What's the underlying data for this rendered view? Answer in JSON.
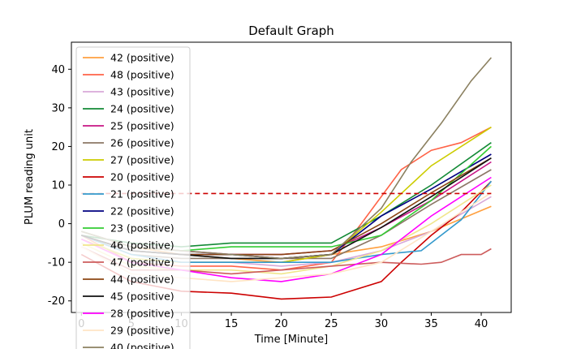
{
  "chart_data": {
    "type": "line",
    "title": "Default Graph",
    "xlabel": "Time [Minute]",
    "ylabel": "PLUM reading unit",
    "xlim": [
      -1,
      43
    ],
    "ylim": [
      -23,
      47
    ],
    "xticks": [
      0,
      5,
      10,
      15,
      20,
      25,
      30,
      35,
      40
    ],
    "yticks": [
      -20,
      -10,
      0,
      10,
      20,
      30,
      40
    ],
    "legend_position": "upper-left",
    "threshold": {
      "y": 7.8,
      "x_start": 0,
      "x_end": 41,
      "color": "#cc0000",
      "style": "dashed"
    },
    "series": [
      {
        "name": "42 (positive)",
        "color": "#ffa040",
        "points": [
          [
            0,
            -2
          ],
          [
            5,
            -6
          ],
          [
            10,
            -8
          ],
          [
            15,
            -9
          ],
          [
            20,
            -10
          ],
          [
            25,
            -8
          ],
          [
            30,
            -6
          ],
          [
            35,
            -2
          ],
          [
            41,
            4.5
          ]
        ]
      },
      {
        "name": "48 (positive)",
        "color": "#ff6347",
        "points": [
          [
            0,
            -3
          ],
          [
            5,
            -10
          ],
          [
            10,
            -11
          ],
          [
            15,
            -11
          ],
          [
            20,
            -12
          ],
          [
            25,
            -10
          ],
          [
            28,
            0
          ],
          [
            32,
            14
          ],
          [
            35,
            19
          ],
          [
            38,
            21
          ],
          [
            41,
            25
          ]
        ]
      },
      {
        "name": "43 (positive)",
        "color": "#d8a8d8",
        "points": [
          [
            0,
            -4
          ],
          [
            5,
            -9
          ],
          [
            10,
            -10
          ],
          [
            15,
            -10
          ],
          [
            20,
            -11
          ],
          [
            25,
            -10
          ],
          [
            30,
            -7
          ],
          [
            35,
            -2
          ],
          [
            41,
            7
          ]
        ]
      },
      {
        "name": "24 (positive)",
        "color": "#138a36",
        "points": [
          [
            0,
            -3
          ],
          [
            5,
            -5
          ],
          [
            10,
            -6
          ],
          [
            15,
            -5
          ],
          [
            20,
            -5
          ],
          [
            25,
            -5
          ],
          [
            30,
            2
          ],
          [
            35,
            10
          ],
          [
            41,
            21
          ]
        ]
      },
      {
        "name": "25 (positive)",
        "color": "#c71585",
        "points": [
          [
            0,
            -2
          ],
          [
            5,
            -6
          ],
          [
            10,
            -7
          ],
          [
            15,
            -8
          ],
          [
            20,
            -8
          ],
          [
            25,
            -7
          ],
          [
            30,
            -1
          ],
          [
            35,
            6
          ],
          [
            41,
            16
          ]
        ]
      },
      {
        "name": "26 (positive)",
        "color": "#8b7765",
        "points": [
          [
            0,
            -3
          ],
          [
            5,
            -8
          ],
          [
            10,
            -9
          ],
          [
            15,
            -9
          ],
          [
            20,
            -9
          ],
          [
            25,
            -9
          ],
          [
            30,
            -3
          ],
          [
            35,
            5
          ],
          [
            41,
            14
          ]
        ]
      },
      {
        "name": "27 (positive)",
        "color": "#cccc00",
        "points": [
          [
            0,
            -4
          ],
          [
            5,
            -9
          ],
          [
            10,
            -10
          ],
          [
            15,
            -10
          ],
          [
            20,
            -10
          ],
          [
            25,
            -8
          ],
          [
            30,
            3
          ],
          [
            35,
            15
          ],
          [
            41,
            25
          ]
        ]
      },
      {
        "name": "20 (positive)",
        "color": "#cc0000",
        "points": [
          [
            0,
            -8
          ],
          [
            5,
            -15
          ],
          [
            10,
            -17.5
          ],
          [
            15,
            -18
          ],
          [
            20,
            -19.5
          ],
          [
            25,
            -19
          ],
          [
            30,
            -15
          ],
          [
            32,
            -10
          ],
          [
            35,
            -3
          ],
          [
            38,
            3
          ],
          [
            41,
            11
          ]
        ]
      },
      {
        "name": "21 (positive)",
        "color": "#3399cc",
        "points": [
          [
            0,
            -3
          ],
          [
            5,
            -8
          ],
          [
            10,
            -10
          ],
          [
            15,
            -10
          ],
          [
            20,
            -10
          ],
          [
            25,
            -10
          ],
          [
            30,
            -8
          ],
          [
            34,
            -7
          ],
          [
            38,
            1
          ],
          [
            41,
            11
          ]
        ]
      },
      {
        "name": "22 (positive)",
        "color": "#000080",
        "points": [
          [
            0,
            -3
          ],
          [
            5,
            -7
          ],
          [
            10,
            -8
          ],
          [
            15,
            -8
          ],
          [
            20,
            -9
          ],
          [
            25,
            -8
          ],
          [
            30,
            2
          ],
          [
            35,
            9
          ],
          [
            41,
            18
          ]
        ]
      },
      {
        "name": "23 (positive)",
        "color": "#33cc33",
        "points": [
          [
            0,
            -2
          ],
          [
            5,
            -6
          ],
          [
            10,
            -7
          ],
          [
            15,
            -6
          ],
          [
            20,
            -6
          ],
          [
            25,
            -6
          ],
          [
            30,
            -3
          ],
          [
            35,
            6
          ],
          [
            41,
            20
          ]
        ]
      },
      {
        "name": "46 (positive)",
        "color": "#f0e68c",
        "points": [
          [
            0,
            -5
          ],
          [
            5,
            -11
          ],
          [
            10,
            -12
          ],
          [
            15,
            -12
          ],
          [
            20,
            -13
          ],
          [
            25,
            -11
          ],
          [
            30,
            -7
          ],
          [
            35,
            0
          ],
          [
            41,
            10
          ]
        ]
      },
      {
        "name": "47 (positive)",
        "color": "#cd5c5c",
        "points": [
          [
            0,
            -6
          ],
          [
            5,
            -12
          ],
          [
            10,
            -12
          ],
          [
            15,
            -13
          ],
          [
            20,
            -12
          ],
          [
            25,
            -11
          ],
          [
            30,
            -10
          ],
          [
            34,
            -10.5
          ],
          [
            36,
            -10
          ],
          [
            38,
            -8
          ],
          [
            40,
            -8
          ],
          [
            41,
            -6.5
          ]
        ]
      },
      {
        "name": "44 (positive)",
        "color": "#8b4513",
        "points": [
          [
            0,
            -3
          ],
          [
            5,
            -7
          ],
          [
            10,
            -8
          ],
          [
            15,
            -8
          ],
          [
            20,
            -8
          ],
          [
            25,
            -7
          ],
          [
            30,
            0
          ],
          [
            35,
            8
          ],
          [
            41,
            17
          ]
        ]
      },
      {
        "name": "45 (positive)",
        "color": "#111111",
        "points": [
          [
            0,
            -3
          ],
          [
            5,
            -7
          ],
          [
            10,
            -8
          ],
          [
            15,
            -9
          ],
          [
            20,
            -9
          ],
          [
            25,
            -8
          ],
          [
            30,
            -1
          ],
          [
            35,
            7
          ],
          [
            41,
            17
          ]
        ]
      },
      {
        "name": "28 (positive)",
        "color": "#ff00ff",
        "points": [
          [
            0,
            -4
          ],
          [
            5,
            -10
          ],
          [
            10,
            -12
          ],
          [
            15,
            -14
          ],
          [
            20,
            -15
          ],
          [
            25,
            -13
          ],
          [
            30,
            -8
          ],
          [
            35,
            2
          ],
          [
            41,
            12
          ]
        ]
      },
      {
        "name": "29 (positive)",
        "color": "#ffe4c4",
        "points": [
          [
            0,
            -6
          ],
          [
            5,
            -13
          ],
          [
            10,
            -14
          ],
          [
            15,
            -15
          ],
          [
            20,
            -14
          ],
          [
            25,
            -13
          ],
          [
            30,
            -10
          ],
          [
            35,
            -2
          ],
          [
            41,
            8
          ]
        ]
      },
      {
        "name": "40 (positive)",
        "color": "#8b8060",
        "points": [
          [
            0,
            -2
          ],
          [
            5,
            -6
          ],
          [
            10,
            -7
          ],
          [
            15,
            -8
          ],
          [
            20,
            -9
          ],
          [
            25,
            -8
          ],
          [
            30,
            4
          ],
          [
            33,
            16
          ],
          [
            36,
            26
          ],
          [
            39,
            37
          ],
          [
            41,
            43
          ]
        ]
      }
    ]
  }
}
